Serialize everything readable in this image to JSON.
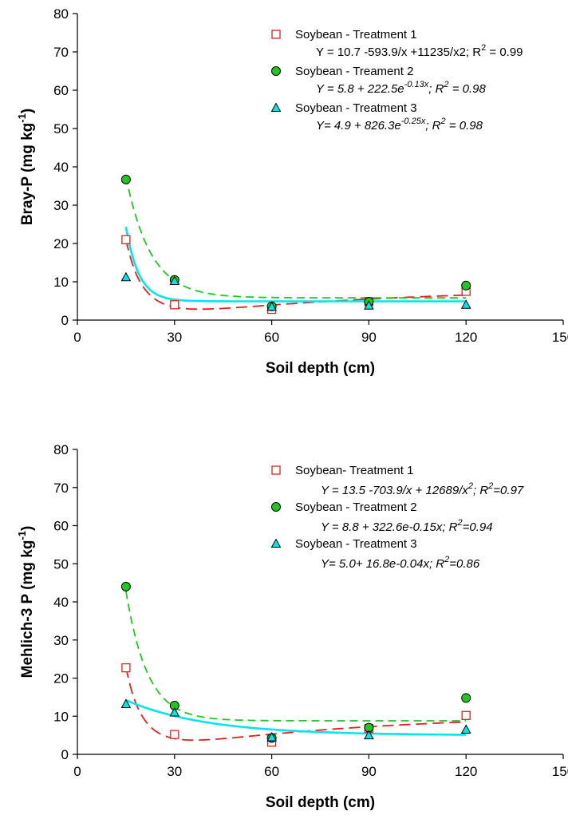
{
  "chart_data": [
    {
      "type": "scatter",
      "xlabel": "Soil depth (cm)",
      "ylabel": "Bray-P (mg kg^-1)",
      "ylabel_main": "Bray-P (mg kg",
      "ylabel_sup": "-1",
      "ylabel_end": ")",
      "xlim": [
        0,
        150
      ],
      "ylim": [
        0,
        80
      ],
      "xticks": [
        "0",
        "30",
        "60",
        "90",
        "120",
        "150"
      ],
      "yticks": [
        "0",
        "10",
        "20",
        "30",
        "40",
        "50",
        "60",
        "70",
        "80"
      ],
      "grid": false,
      "legend_position": "top-right",
      "series": [
        {
          "name": "Soybean - Treatment 1",
          "marker": "square",
          "color": "#e0201b",
          "line_style": "long-dash",
          "x": [
            15,
            30,
            60,
            90,
            120
          ],
          "y": [
            21.0,
            4.0,
            2.8,
            4.8,
            7.5
          ],
          "fit": {
            "model": "a+b/x+c/x2",
            "a": 10.7,
            "b": -593.9,
            "c": 11235
          },
          "equation": {
            "text": "Y = 10.7 -593.9/x +11235/x2; R",
            "sup": "2",
            "tail": " = 0.99",
            "italic": false
          }
        },
        {
          "name": "Soybean - Treament 2",
          "marker": "circle",
          "color": "#1ec81e",
          "line_style": "dash",
          "x": [
            15,
            30,
            60,
            90,
            120
          ],
          "y": [
            36.7,
            10.5,
            3.6,
            4.8,
            9.0
          ],
          "fit": {
            "model": "a+b*exp(c*x)",
            "a": 5.8,
            "b": 222.5,
            "c": -0.13
          },
          "equation": {
            "text": "Y = 5.8 + 222.5e",
            "sup": "-0.13x",
            "tail": "; R",
            "sup2": "2",
            "tail2": " = 0.98",
            "italic": true
          }
        },
        {
          "name": "Soybean - Treatment 3",
          "marker": "triangle",
          "color": "#00e5ee",
          "line_style": "solid",
          "x": [
            15,
            30,
            60,
            90,
            120
          ],
          "y": [
            11.2,
            10.2,
            3.5,
            3.8,
            4.0
          ],
          "fit": {
            "model": "a+b*exp(c*x)",
            "a": 4.9,
            "b": 826.3,
            "c": -0.25
          },
          "equation": {
            "text": "Y= 4.9 + 826.3e",
            "sup": "-0.25x",
            "tail": "; R",
            "sup2": "2",
            "tail2": " = 0.98",
            "italic": true
          }
        }
      ]
    },
    {
      "type": "scatter",
      "xlabel": "Soil depth (cm)",
      "ylabel": "Mehlich-3 P (mg kg^-1)",
      "ylabel_main": "Mehlich-3 P (mg kg",
      "ylabel_sup": "-1",
      "ylabel_end": ")",
      "xlim": [
        0,
        150
      ],
      "ylim": [
        0,
        80
      ],
      "xticks": [
        "0",
        "30",
        "60",
        "90",
        "120",
        "150"
      ],
      "yticks": [
        "0",
        "10",
        "20",
        "30",
        "40",
        "50",
        "60",
        "70",
        "80"
      ],
      "grid": false,
      "legend_position": "top-right",
      "series": [
        {
          "name": "Soybean- Treatment 1",
          "marker": "square",
          "color": "#e0201b",
          "line_style": "long-dash",
          "x": [
            15,
            30,
            60,
            90,
            120
          ],
          "y": [
            22.7,
            5.2,
            3.2,
            6.8,
            10.2
          ],
          "fit": {
            "model": "a+b/x+c/x2",
            "a": 13.5,
            "b": -703.9,
            "c": 12689
          },
          "equation": {
            "text": "Y = 13.5 -703.9/x + 12689/x",
            "sup": "2",
            "tail": "; R",
            "sup2": "2",
            "tail2": "=0.97",
            "italic": true
          }
        },
        {
          "name": "Soybean - Treatment 2",
          "marker": "circle",
          "color": "#1ec81e",
          "line_style": "dash",
          "x": [
            15,
            30,
            60,
            90,
            120
          ],
          "y": [
            44.0,
            12.8,
            4.3,
            7.0,
            14.8
          ],
          "fit": {
            "model": "a+b*exp(c*x)",
            "a": 8.8,
            "b": 322.6,
            "c": -0.15
          },
          "equation": {
            "text": "Y = 8.8 + 322.6e-0.15x; R",
            "sup": "2",
            "tail": "=0.94",
            "italic": true
          }
        },
        {
          "name": "Soybean - Treatment 3",
          "marker": "triangle",
          "color": "#00e5ee",
          "line_style": "solid",
          "x": [
            15,
            30,
            60,
            90,
            120
          ],
          "y": [
            13.2,
            11.0,
            4.5,
            5.0,
            6.5
          ],
          "fit": {
            "model": "a+b*exp(c*x)",
            "a": 5.0,
            "b": 16.8,
            "c": -0.04
          },
          "equation": {
            "text": "Y= 5.0+ 16.8e-0.04x; R",
            "sup": "2",
            "tail": "=0.86",
            "italic": true
          }
        }
      ]
    }
  ]
}
